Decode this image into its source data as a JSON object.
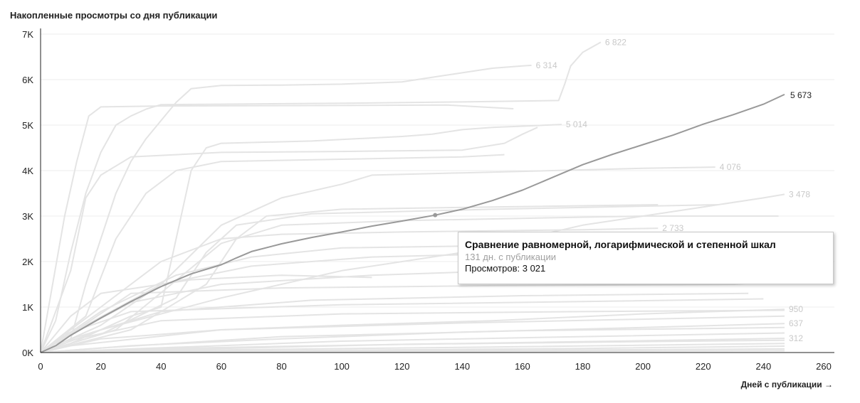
{
  "title": "Накопленные просмотры со дня публикации",
  "x_axis_title": "Дней с публикации →",
  "tooltip": {
    "title": "Сравнение равномерной, логарифмической и степенной шкал",
    "subtitle": "131 дн. с публикации",
    "value_text": "Просмотров: 3 021"
  },
  "colors": {
    "background_series": "#e4e4e4",
    "highlight_series": "#999999",
    "grid": "#eeeeee",
    "axis": "#222222"
  },
  "chart_data": {
    "type": "line",
    "xlim": [
      0,
      260
    ],
    "ylim": [
      0,
      7000
    ],
    "x_ticks": [
      0,
      20,
      40,
      60,
      80,
      100,
      120,
      140,
      160,
      180,
      200,
      220,
      240,
      260
    ],
    "y_ticks": [
      0,
      1000,
      2000,
      3000,
      4000,
      5000,
      6000,
      7000
    ],
    "y_tick_labels": [
      "0K",
      "1K",
      "2K",
      "3K",
      "4K",
      "5K",
      "6K",
      "7K"
    ],
    "grid": "horizontal",
    "highlight_series": {
      "name": "Сравнение равномерной, логарифмической и степенной шкал",
      "end_label": "5 673",
      "points": [
        [
          0,
          0
        ],
        [
          5,
          150
        ],
        [
          10,
          380
        ],
        [
          20,
          760
        ],
        [
          30,
          1120
        ],
        [
          40,
          1450
        ],
        [
          50,
          1730
        ],
        [
          60,
          1930
        ],
        [
          65,
          2080
        ],
        [
          70,
          2220
        ],
        [
          80,
          2390
        ],
        [
          90,
          2530
        ],
        [
          100,
          2650
        ],
        [
          110,
          2780
        ],
        [
          120,
          2890
        ],
        [
          131,
          3021
        ],
        [
          140,
          3150
        ],
        [
          150,
          3340
        ],
        [
          160,
          3570
        ],
        [
          170,
          3850
        ],
        [
          180,
          4130
        ],
        [
          190,
          4360
        ],
        [
          200,
          4570
        ],
        [
          210,
          4780
        ],
        [
          220,
          5020
        ],
        [
          230,
          5230
        ],
        [
          240,
          5460
        ],
        [
          247,
          5673
        ]
      ],
      "marker": [
        131,
        3021
      ]
    },
    "background_series": [
      {
        "end_label": "6 822",
        "points": [
          [
            0,
            0
          ],
          [
            5,
            700
          ],
          [
            10,
            2200
          ],
          [
            15,
            3500
          ],
          [
            20,
            4400
          ],
          [
            25,
            5000
          ],
          [
            30,
            5200
          ],
          [
            35,
            5350
          ],
          [
            40,
            5450
          ],
          [
            60,
            5460
          ],
          [
            100,
            5480
          ],
          [
            140,
            5510
          ],
          [
            172,
            5540
          ],
          [
            174,
            5900
          ],
          [
            176,
            6300
          ],
          [
            180,
            6600
          ],
          [
            186,
            6822
          ]
        ]
      },
      {
        "end_label": "6 314",
        "points": [
          [
            0,
            0
          ],
          [
            10,
            300
          ],
          [
            15,
            1500
          ],
          [
            20,
            2500
          ],
          [
            25,
            3500
          ],
          [
            30,
            4200
          ],
          [
            35,
            4700
          ],
          [
            40,
            5100
          ],
          [
            45,
            5500
          ],
          [
            50,
            5800
          ],
          [
            60,
            5870
          ],
          [
            80,
            5880
          ],
          [
            100,
            5900
          ],
          [
            120,
            5950
          ],
          [
            130,
            6050
          ],
          [
            140,
            6150
          ],
          [
            150,
            6250
          ],
          [
            160,
            6300
          ],
          [
            163,
            6314
          ]
        ]
      },
      {
        "end_label": "5 014",
        "points": [
          [
            0,
            0
          ],
          [
            10,
            200
          ],
          [
            30,
            800
          ],
          [
            40,
            1000
          ],
          [
            45,
            2500
          ],
          [
            50,
            4000
          ],
          [
            55,
            4500
          ],
          [
            60,
            4600
          ],
          [
            90,
            4650
          ],
          [
            120,
            4750
          ],
          [
            130,
            4800
          ],
          [
            140,
            4900
          ],
          [
            150,
            4950
          ],
          [
            165,
            4990
          ],
          [
            173,
            5014
          ]
        ]
      },
      {
        "end_label": "4 076",
        "points": [
          [
            0,
            0
          ],
          [
            20,
            600
          ],
          [
            40,
            1500
          ],
          [
            60,
            2800
          ],
          [
            80,
            3400
          ],
          [
            100,
            3700
          ],
          [
            110,
            3900
          ],
          [
            140,
            3950
          ],
          [
            170,
            4000
          ],
          [
            200,
            4050
          ],
          [
            224,
            4076
          ]
        ]
      },
      {
        "end_label": "3 478",
        "points": [
          [
            0,
            0
          ],
          [
            20,
            500
          ],
          [
            60,
            1200
          ],
          [
            100,
            1800
          ],
          [
            140,
            2200
          ],
          [
            180,
            2800
          ],
          [
            200,
            3000
          ],
          [
            220,
            3200
          ],
          [
            240,
            3400
          ],
          [
            247,
            3478
          ]
        ]
      },
      {
        "end_label": "2 733",
        "points": [
          [
            0,
            0
          ],
          [
            20,
            1000
          ],
          [
            40,
            2000
          ],
          [
            60,
            2500
          ],
          [
            80,
            2600
          ],
          [
            120,
            2650
          ],
          [
            180,
            2700
          ],
          [
            205,
            2733
          ]
        ]
      },
      {
        "end_label": "950",
        "points": [
          [
            0,
            0
          ],
          [
            20,
            300
          ],
          [
            60,
            500
          ],
          [
            100,
            600
          ],
          [
            150,
            700
          ],
          [
            200,
            850
          ],
          [
            247,
            950
          ]
        ]
      },
      {
        "end_label": "637",
        "points": [
          [
            0,
            0
          ],
          [
            30,
            150
          ],
          [
            80,
            300
          ],
          [
            140,
            450
          ],
          [
            200,
            550
          ],
          [
            247,
            637
          ]
        ]
      },
      {
        "end_label": "312",
        "points": [
          [
            0,
            0
          ],
          [
            50,
            100
          ],
          [
            120,
            180
          ],
          [
            200,
            260
          ],
          [
            247,
            312
          ]
        ]
      },
      {
        "end_label": "",
        "points": [
          [
            0,
            0
          ],
          [
            8,
            3000
          ],
          [
            12,
            4200
          ],
          [
            16,
            5200
          ],
          [
            20,
            5400
          ],
          [
            40,
            5420
          ],
          [
            90,
            5430
          ],
          [
            135,
            5440
          ],
          [
            157,
            5360
          ]
        ]
      },
      {
        "end_label": "",
        "points": [
          [
            0,
            0
          ],
          [
            10,
            1800
          ],
          [
            15,
            3400
          ],
          [
            20,
            3900
          ],
          [
            30,
            4300
          ],
          [
            60,
            4400
          ],
          [
            100,
            4420
          ],
          [
            140,
            4450
          ],
          [
            154,
            4600
          ],
          [
            160,
            4800
          ],
          [
            165,
            4950
          ]
        ]
      },
      {
        "end_label": "",
        "points": [
          [
            0,
            0
          ],
          [
            15,
            800
          ],
          [
            25,
            2500
          ],
          [
            35,
            3500
          ],
          [
            45,
            4000
          ],
          [
            60,
            4200
          ],
          [
            100,
            4250
          ],
          [
            140,
            4300
          ],
          [
            154,
            4350
          ]
        ]
      },
      {
        "end_label": "",
        "points": [
          [
            0,
            0
          ],
          [
            30,
            500
          ],
          [
            55,
            1500
          ],
          [
            65,
            2500
          ],
          [
            75,
            3000
          ],
          [
            100,
            3150
          ],
          [
            150,
            3200
          ],
          [
            205,
            3250
          ]
        ]
      },
      {
        "end_label": "",
        "points": [
          [
            0,
            0
          ],
          [
            20,
            400
          ],
          [
            45,
            1200
          ],
          [
            55,
            2200
          ],
          [
            65,
            2800
          ],
          [
            90,
            3050
          ],
          [
            150,
            3150
          ],
          [
            225,
            3250
          ]
        ]
      },
      {
        "end_label": "",
        "points": [
          [
            0,
            0
          ],
          [
            25,
            500
          ],
          [
            60,
            2400
          ],
          [
            80,
            2800
          ],
          [
            120,
            2900
          ],
          [
            200,
            3000
          ],
          [
            245,
            3000
          ]
        ]
      },
      {
        "end_label": "",
        "points": [
          [
            0,
            0
          ],
          [
            20,
            900
          ],
          [
            45,
            1700
          ],
          [
            70,
            2100
          ],
          [
            100,
            2300
          ],
          [
            200,
            2400
          ],
          [
            245,
            2420
          ]
        ]
      },
      {
        "end_label": "",
        "points": [
          [
            0,
            0
          ],
          [
            15,
            600
          ],
          [
            40,
            1500
          ],
          [
            70,
            1900
          ],
          [
            110,
            2100
          ],
          [
            200,
            2250
          ],
          [
            245,
            2280
          ]
        ]
      },
      {
        "end_label": "",
        "points": [
          [
            0,
            0
          ],
          [
            10,
            400
          ],
          [
            30,
            1100
          ],
          [
            60,
            1500
          ],
          [
            110,
            1700
          ],
          [
            200,
            1900
          ],
          [
            245,
            2000
          ]
        ]
      },
      {
        "end_label": "",
        "points": [
          [
            0,
            0
          ],
          [
            10,
            800
          ],
          [
            20,
            1300
          ],
          [
            50,
            1600
          ],
          [
            80,
            1700
          ],
          [
            110,
            1650
          ]
        ]
      },
      {
        "end_label": "",
        "points": [
          [
            0,
            0
          ],
          [
            12,
            500
          ],
          [
            30,
            1300
          ],
          [
            80,
            1420
          ],
          [
            150,
            1470
          ],
          [
            230,
            1500
          ],
          [
            245,
            1560
          ]
        ]
      },
      {
        "end_label": "",
        "points": [
          [
            0,
            0
          ],
          [
            10,
            300
          ],
          [
            40,
            900
          ],
          [
            90,
            1150
          ],
          [
            160,
            1250
          ],
          [
            235,
            1300
          ]
        ]
      },
      {
        "end_label": "",
        "points": [
          [
            0,
            0
          ],
          [
            8,
            400
          ],
          [
            30,
            900
          ],
          [
            100,
            1050
          ],
          [
            180,
            1120
          ],
          [
            240,
            1180
          ]
        ]
      },
      {
        "end_label": "",
        "points": [
          [
            0,
            0
          ],
          [
            5,
            200
          ],
          [
            40,
            700
          ],
          [
            100,
            850
          ],
          [
            180,
            900
          ],
          [
            247,
            930
          ]
        ]
      },
      {
        "end_label": "",
        "points": [
          [
            0,
            0
          ],
          [
            10,
            150
          ],
          [
            60,
            500
          ],
          [
            140,
            650
          ],
          [
            247,
            800
          ]
        ]
      },
      {
        "end_label": "",
        "points": [
          [
            0,
            0
          ],
          [
            20,
            100
          ],
          [
            80,
            350
          ],
          [
            160,
            480
          ],
          [
            247,
            550
          ]
        ]
      },
      {
        "end_label": "",
        "points": [
          [
            0,
            0
          ],
          [
            30,
            80
          ],
          [
            100,
            250
          ],
          [
            180,
            350
          ],
          [
            247,
            430
          ]
        ]
      },
      {
        "end_label": "",
        "points": [
          [
            0,
            0
          ],
          [
            40,
            60
          ],
          [
            120,
            180
          ],
          [
            200,
            240
          ],
          [
            247,
            270
          ]
        ]
      },
      {
        "end_label": "",
        "points": [
          [
            0,
            0
          ],
          [
            60,
            60
          ],
          [
            150,
            120
          ],
          [
            247,
            200
          ]
        ]
      },
      {
        "end_label": "",
        "points": [
          [
            0,
            0
          ],
          [
            80,
            40
          ],
          [
            180,
            90
          ],
          [
            247,
            140
          ]
        ]
      },
      {
        "end_label": "",
        "points": [
          [
            0,
            0
          ],
          [
            100,
            30
          ],
          [
            247,
            80
          ]
        ]
      },
      {
        "end_label": "",
        "points": [
          [
            0,
            0
          ],
          [
            120,
            20
          ],
          [
            247,
            40
          ]
        ]
      }
    ]
  }
}
